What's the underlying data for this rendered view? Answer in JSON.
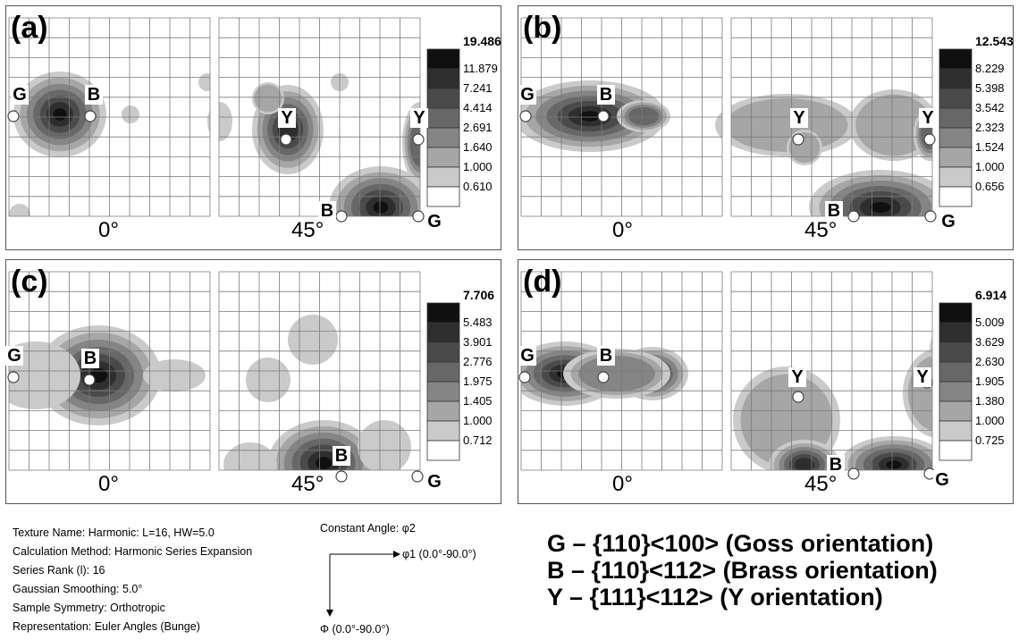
{
  "panels": [
    {
      "id": "a",
      "label": "(a)",
      "sections": [
        "0°",
        "45°"
      ],
      "scale_values": [
        "19.486",
        "11.879",
        "7.241",
        "4.414",
        "2.691",
        "1.640",
        "1.000",
        "0.610"
      ],
      "left_markers": [
        {
          "label": "G"
        },
        {
          "label": "B"
        }
      ],
      "right_markers": [
        {
          "label": "Y"
        },
        {
          "label": "Y"
        },
        {
          "label": "B"
        },
        {
          "label": "G"
        }
      ]
    },
    {
      "id": "b",
      "label": "(b)",
      "sections": [
        "0°",
        "45°"
      ],
      "scale_values": [
        "12.543",
        "8.229",
        "5.398",
        "3.542",
        "2.323",
        "1.524",
        "1.000",
        "0.656"
      ],
      "left_markers": [
        {
          "label": "G"
        },
        {
          "label": "B"
        }
      ],
      "right_markers": [
        {
          "label": "Y"
        },
        {
          "label": "Y"
        },
        {
          "label": "B"
        },
        {
          "label": "G"
        }
      ]
    },
    {
      "id": "c",
      "label": "(c)",
      "sections": [
        "0°",
        "45°"
      ],
      "scale_values": [
        "7.706",
        "5.483",
        "3.901",
        "2.776",
        "1.975",
        "1.405",
        "1.000",
        "0.712"
      ],
      "left_markers": [
        {
          "label": "G"
        },
        {
          "label": "B"
        }
      ],
      "right_markers": [
        {
          "label": "B"
        },
        {
          "label": "G"
        }
      ]
    },
    {
      "id": "d",
      "label": "(d)",
      "sections": [
        "0°",
        "45°"
      ],
      "scale_values": [
        "6.914",
        "5.009",
        "3.629",
        "2.630",
        "1.905",
        "1.380",
        "1.000",
        "0.725"
      ],
      "left_markers": [
        {
          "label": "G"
        },
        {
          "label": "B"
        }
      ],
      "right_markers": [
        {
          "label": "Y"
        },
        {
          "label": "Y"
        },
        {
          "label": "B"
        },
        {
          "label": "G"
        }
      ]
    }
  ],
  "info": [
    "Texture Name: Harmonic: L=16, HW=5.0",
    "Calculation Method: Harmonic Series Expansion",
    "Series Rank (l): 16",
    "Gaussian Smoothing: 5.0°",
    "Sample Symmetry: Orthotropic",
    "Representation: Euler Angles (Bunge)"
  ],
  "axes": {
    "constant": "Constant Angle: φ2",
    "phi1": "φ1 (0.0°-90.0°)",
    "Phi": "Φ (0.0°-90.0°)"
  },
  "legend": [
    "G – {110}<100> (Goss orientation)",
    "B – {110}<112> (Brass orientation)",
    "Y – {111}<112> (Y orientation)"
  ],
  "shade_colors": [
    "#101010",
    "#2e2e2e",
    "#4a4a4a",
    "#676767",
    "#858585",
    "#a6a6a6",
    "#cacaca",
    "#ffffff"
  ]
}
